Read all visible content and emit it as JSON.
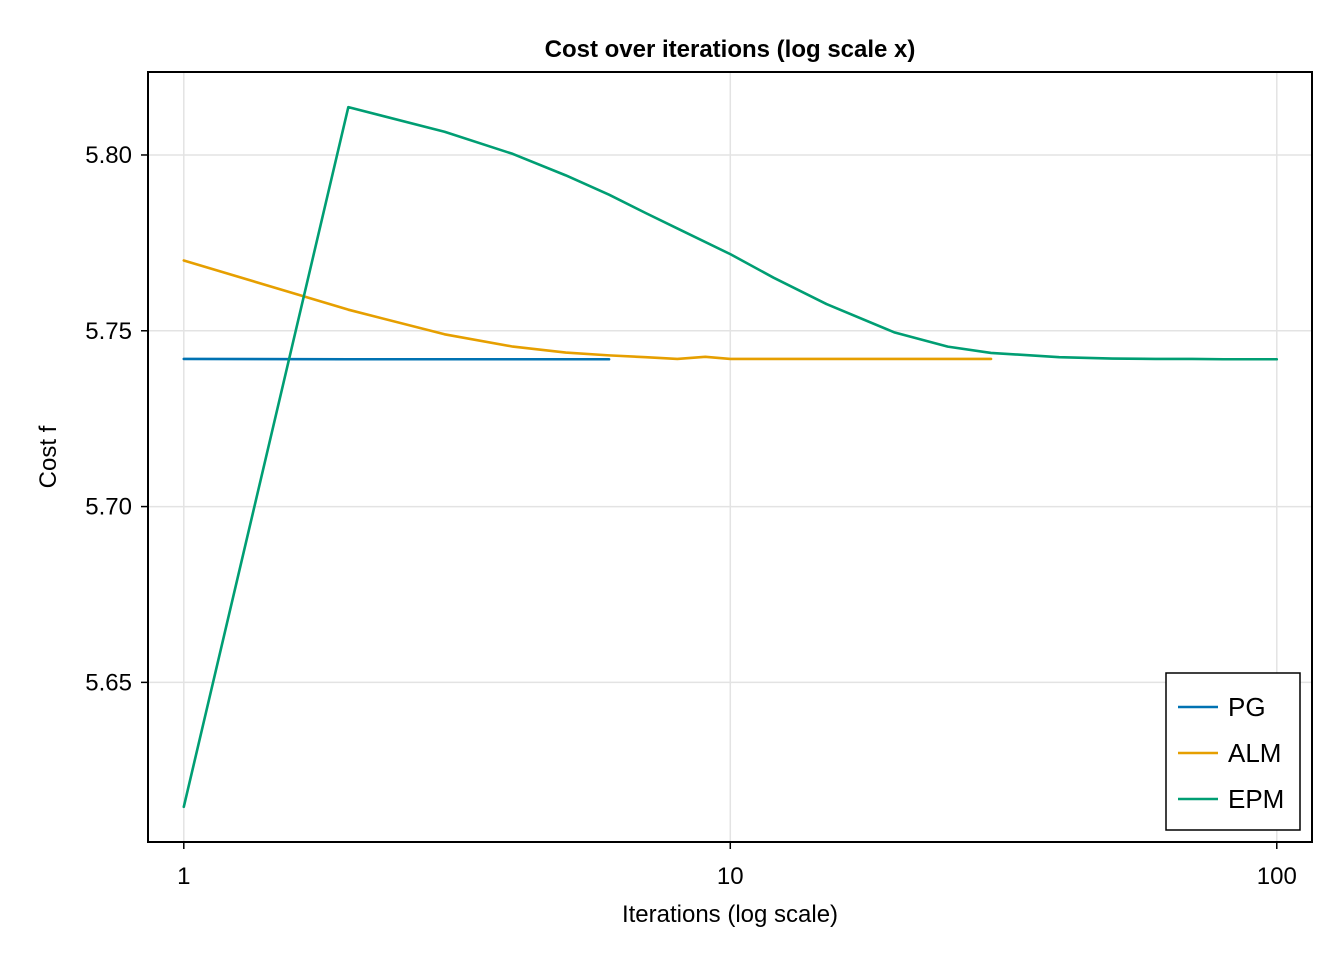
{
  "chart_data": {
    "type": "line",
    "title": "Cost over iterations (log scale x)",
    "xlabel": "Iterations (log scale)",
    "ylabel": "Cost f",
    "xscale": "log10",
    "xlim": [
      0.86,
      116
    ],
    "ylim": [
      5.6046,
      5.8236
    ],
    "xticks": [
      1,
      10,
      100
    ],
    "xtick_labels": [
      "1",
      "10",
      "100"
    ],
    "yticks": [
      5.65,
      5.7,
      5.75,
      5.8
    ],
    "ytick_labels": [
      "5.65",
      "5.70",
      "5.75",
      "5.80"
    ],
    "grid": true,
    "legend_position": "bottom-right",
    "series": [
      {
        "name": "PG",
        "color": "#0072b2",
        "x": [
          1,
          2,
          3,
          4,
          5,
          6
        ],
        "y": [
          5.742,
          5.7419,
          5.7419,
          5.7419,
          5.7419,
          5.7419
        ]
      },
      {
        "name": "ALM",
        "color": "#e69f00",
        "x": [
          1,
          2,
          3,
          4,
          5,
          6,
          7,
          8,
          9,
          10,
          11,
          12,
          13,
          14,
          15,
          20,
          25,
          30
        ],
        "y": [
          5.77,
          5.756,
          5.749,
          5.7455,
          5.7438,
          5.743,
          5.7425,
          5.742,
          5.7426,
          5.742,
          5.742,
          5.742,
          5.742,
          5.742,
          5.742,
          5.742,
          5.742,
          5.742
        ]
      },
      {
        "name": "EPM",
        "color": "#009e73",
        "x": [
          1,
          2,
          3,
          4,
          5,
          6,
          7,
          8,
          10,
          12,
          15,
          20,
          25,
          30,
          40,
          50,
          60,
          70,
          80,
          90,
          100
        ],
        "y": [
          5.6146,
          5.8136,
          5.8066,
          5.8003,
          5.7942,
          5.7887,
          5.7835,
          5.7791,
          5.7718,
          5.7651,
          5.7576,
          5.7495,
          5.7455,
          5.7437,
          5.7425,
          5.7421,
          5.742,
          5.742,
          5.7419,
          5.7419,
          5.7419
        ]
      }
    ]
  }
}
